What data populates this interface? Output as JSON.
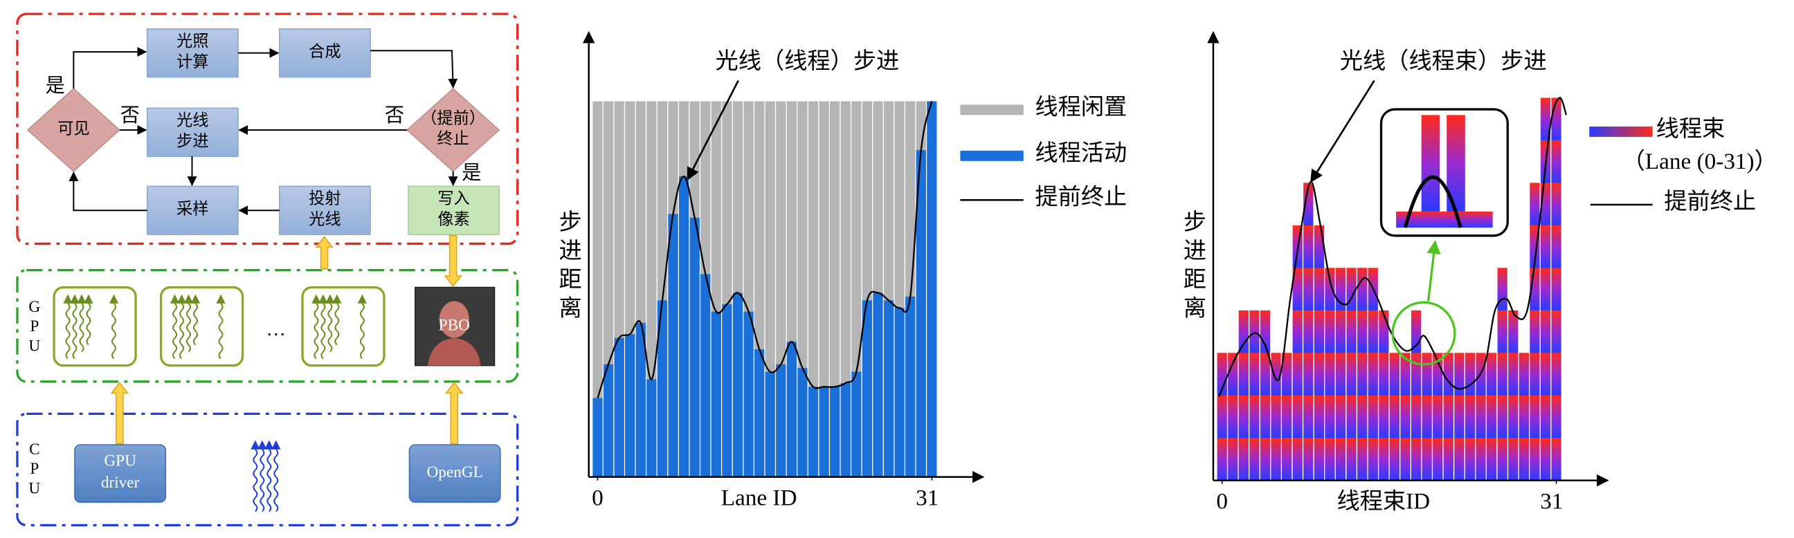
{
  "flowchart": {
    "nodes": [
      {
        "lines": [
          "光照",
          "计算"
        ]
      },
      {
        "lines": [
          "合成"
        ]
      },
      {
        "lines": [
          "可见"
        ]
      },
      {
        "lines": [
          "光线",
          "步进"
        ]
      },
      {
        "lines": [
          "（提前）",
          "终止"
        ]
      },
      {
        "lines": [
          "采样"
        ]
      },
      {
        "lines": [
          "投射",
          "光线"
        ]
      },
      {
        "lines": [
          "写入",
          "像素"
        ]
      }
    ],
    "edge_labels": [
      "是",
      "否",
      "否",
      "是"
    ]
  },
  "gpu": {
    "label": [
      "G",
      "P",
      "U"
    ],
    "ellipsis": "…",
    "buffer": "PBO"
  },
  "cpu": {
    "label": [
      "C",
      "P",
      "U"
    ],
    "driver": [
      "GPU",
      "driver"
    ],
    "api": "OpenGL"
  },
  "thread_chart": {
    "type": "bar",
    "title": "光线（线程）步进",
    "y_label": [
      "步",
      "进",
      "距",
      "离"
    ],
    "x_label": "Lane ID",
    "xticks": [
      0,
      31
    ],
    "ylim": [
      0,
      100
    ],
    "color": "#1a6fd8",
    "idle_color": "#b5b5b5",
    "values": [
      21,
      30,
      37,
      38,
      41,
      26,
      47,
      70,
      80,
      69,
      54,
      44,
      46,
      49,
      44,
      34,
      28,
      30,
      36,
      29,
      24,
      24,
      24,
      25,
      28,
      47,
      49,
      47,
      45,
      48,
      87,
      100
    ],
    "legend": [
      "线程闲置",
      "线程活动",
      "提前终止"
    ]
  },
  "warp_chart": {
    "type": "bar",
    "title": "光线（线程束）步进",
    "y_label": [
      "步",
      "进",
      "距",
      "离"
    ],
    "x_label": "线程束ID",
    "xticks": [
      0,
      31
    ],
    "ylim": [
      0,
      9
    ],
    "values": [
      3,
      3,
      4,
      4,
      4,
      3,
      3,
      6,
      7,
      6,
      5,
      5,
      5,
      5,
      5,
      4,
      3,
      3,
      4,
      3,
      3,
      3,
      3,
      3,
      3,
      3,
      5,
      4,
      3,
      7,
      9,
      9
    ],
    "legend": [
      "线程束",
      "（Lane (0-31)）",
      "提前终止"
    ]
  }
}
